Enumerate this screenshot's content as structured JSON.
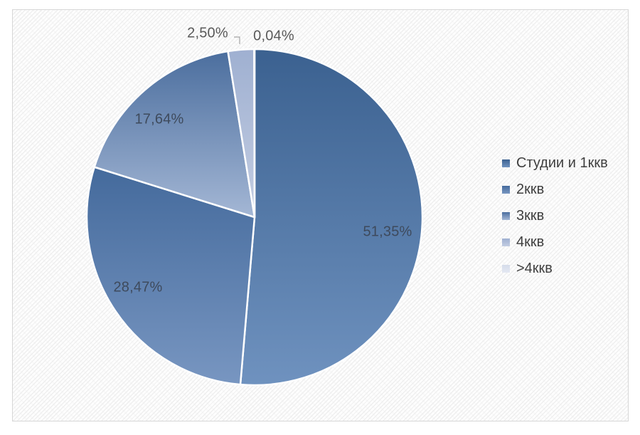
{
  "chart_frame": {
    "border_color": "#d7d7d7",
    "texture_line_color": "#ececec",
    "background_color": "#fdfdfd"
  },
  "chart_data": {
    "type": "pie",
    "title": "",
    "unit": "%",
    "decimal_separator": ",",
    "direction": "clockwise",
    "start_angle_deg": 0,
    "legend_position": "right",
    "grid": false,
    "label_text_color_inside": "#3e4a5c",
    "label_text_color_outside": "#595959",
    "separator_color": "#ffffff",
    "leader_line_color": "#a6a6a6",
    "slices": [
      {
        "name": "Студии и 1ккв",
        "value": 51.35,
        "label": "51,35%",
        "color_top": "#3b6190",
        "color_bottom": "#6f92bf"
      },
      {
        "name": "2ккв",
        "value": 28.47,
        "label": "28,47%",
        "color_top": "#446a9c",
        "color_bottom": "#7896c1"
      },
      {
        "name": "3ккв",
        "value": 17.64,
        "label": "17,64%",
        "color_top": "#4b6e9e",
        "color_bottom": "#a4b7d5"
      },
      {
        "name": "4ккв",
        "value": 2.5,
        "label": "2,50%",
        "color_top": "#9fb0d1",
        "color_bottom": "#c3cde2"
      },
      {
        "name": ">4ккв",
        "value": 0.04,
        "label": "0,04%",
        "color_top": "#d5dcea",
        "color_bottom": "#e4e8f2"
      }
    ]
  }
}
